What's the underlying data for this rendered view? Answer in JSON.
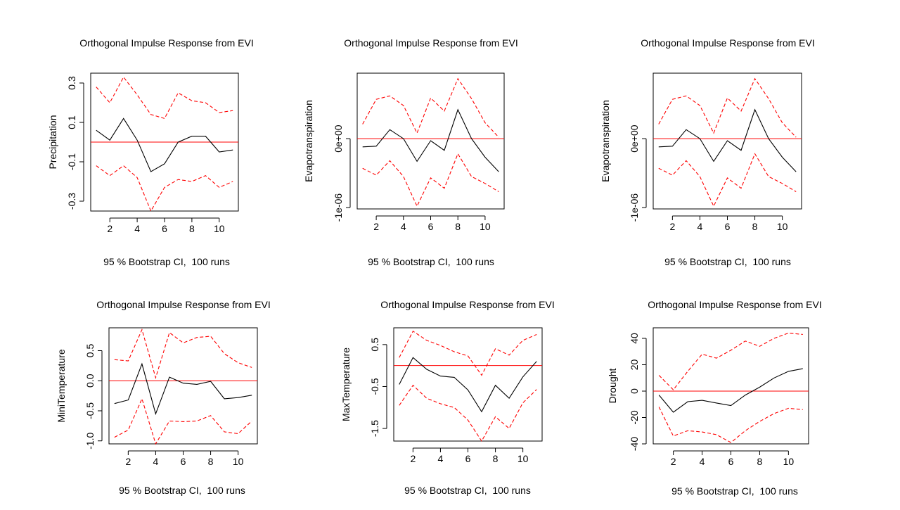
{
  "colors": {
    "response": "#000000",
    "ci": "#ff0000",
    "zero": "#ff0000",
    "frame": "#000000"
  },
  "chart_data": [
    {
      "type": "line",
      "title": "Orthogonal Impulse Response from EVI",
      "subtitle": "95 % Bootstrap CI,  100 runs",
      "ylabel": "Precipitation",
      "x": [
        1,
        2,
        3,
        4,
        5,
        6,
        7,
        8,
        9,
        10,
        11
      ],
      "xticks": [
        2,
        4,
        6,
        8,
        10
      ],
      "xtick_labels": [
        "2",
        "4",
        "6",
        "8",
        "10"
      ],
      "xlim": [
        0.6,
        11.4
      ],
      "yticks": [
        0.3,
        0.1,
        -0.1,
        -0.3
      ],
      "ytick_labels": [
        "0.3",
        "0.1",
        "-0.1",
        "-0.3"
      ],
      "ylim": [
        -0.35,
        0.35
      ],
      "series": [
        {
          "role": "response",
          "values": [
            0.06,
            0.01,
            0.12,
            0.01,
            -0.15,
            -0.11,
            0.0,
            0.03,
            0.03,
            -0.05,
            -0.04
          ]
        },
        {
          "role": "upper",
          "values": [
            0.28,
            0.2,
            0.33,
            0.24,
            0.14,
            0.12,
            0.25,
            0.21,
            0.2,
            0.15,
            0.16
          ]
        },
        {
          "role": "lower",
          "values": [
            -0.12,
            -0.17,
            -0.12,
            -0.18,
            -0.35,
            -0.23,
            -0.19,
            -0.2,
            -0.17,
            -0.23,
            -0.2
          ]
        }
      ]
    },
    {
      "type": "line",
      "title": "Orthogonal Impulse Response from EVI",
      "subtitle": "95 % Bootstrap CI,  100 runs",
      "ylabel": "Evapotranspiration",
      "x": [
        1,
        2,
        3,
        4,
        5,
        6,
        7,
        8,
        9,
        10,
        11
      ],
      "xticks": [
        2,
        4,
        6,
        8,
        10
      ],
      "xtick_labels": [
        "2",
        "4",
        "6",
        "8",
        "10"
      ],
      "xlim": [
        0.6,
        11.4
      ],
      "yticks": [
        0.0,
        -1e-06
      ],
      "ytick_labels": [
        "0e+00",
        "-1e-06"
      ],
      "ylim": [
        -1.02e-06,
        9.5e-07
      ],
      "series": [
        {
          "role": "response",
          "values": [
            -1.2e-07,
            -1.1e-07,
            1.3e-07,
            0.0,
            -3.3e-07,
            -3e-08,
            -1.7e-07,
            4.2e-07,
            0.0,
            -2.7e-07,
            -4.8e-07
          ]
        },
        {
          "role": "upper",
          "values": [
            2.1e-07,
            5.7e-07,
            6.2e-07,
            4.8e-07,
            8e-08,
            5.9e-07,
            4e-07,
            8.7e-07,
            5.8e-07,
            2.3e-07,
            2e-08
          ]
        },
        {
          "role": "lower",
          "values": [
            -4.3e-07,
            -5.3e-07,
            -3.2e-07,
            -5.5e-07,
            -9.8e-07,
            -5.7e-07,
            -7.2e-07,
            -2.2e-07,
            -5.5e-07,
            -6.5e-07,
            -7.7e-07
          ]
        }
      ]
    },
    {
      "type": "line",
      "title": "Orthogonal Impulse Response from EVI",
      "subtitle": "95 % Bootstrap CI,  100 runs",
      "ylabel": "Evapotranspiration",
      "x": [
        1,
        2,
        3,
        4,
        5,
        6,
        7,
        8,
        9,
        10,
        11
      ],
      "xticks": [
        2,
        4,
        6,
        8,
        10
      ],
      "xtick_labels": [
        "2",
        "4",
        "6",
        "8",
        "10"
      ],
      "xlim": [
        0.6,
        11.4
      ],
      "yticks": [
        0.0,
        -1e-06
      ],
      "ytick_labels": [
        "0e+00",
        "-1e-06"
      ],
      "ylim": [
        -1.02e-06,
        9.5e-07
      ],
      "series": [
        {
          "role": "response",
          "values": [
            -1.2e-07,
            -1.1e-07,
            1.3e-07,
            0.0,
            -3.3e-07,
            -3e-08,
            -1.7e-07,
            4.2e-07,
            0.0,
            -2.7e-07,
            -4.8e-07
          ]
        },
        {
          "role": "upper",
          "values": [
            2.1e-07,
            5.7e-07,
            6.2e-07,
            4.8e-07,
            8e-08,
            5.9e-07,
            4e-07,
            8.7e-07,
            5.8e-07,
            2.3e-07,
            2e-08
          ]
        },
        {
          "role": "lower",
          "values": [
            -4.3e-07,
            -5.3e-07,
            -3.2e-07,
            -5.5e-07,
            -9.8e-07,
            -5.7e-07,
            -7.2e-07,
            -2.2e-07,
            -5.5e-07,
            -6.5e-07,
            -7.7e-07
          ]
        }
      ]
    },
    {
      "type": "line",
      "title": "Orthogonal Impulse Response from EVI",
      "subtitle": "95 % Bootstrap CI,  100 runs",
      "ylabel": "MiniTemperature",
      "x": [
        1,
        2,
        3,
        4,
        5,
        6,
        7,
        8,
        9,
        10,
        11
      ],
      "xticks": [
        2,
        4,
        6,
        8,
        10
      ],
      "xtick_labels": [
        "2",
        "4",
        "6",
        "8",
        "10"
      ],
      "xlim": [
        0.6,
        11.4
      ],
      "yticks": [
        0.5,
        0.0,
        -0.5,
        -1.0
      ],
      "ytick_labels": [
        "0.5",
        "0.0",
        "-0.5",
        "-1.0"
      ],
      "ylim": [
        -1.05,
        0.88
      ],
      "series": [
        {
          "role": "response",
          "values": [
            -0.38,
            -0.32,
            0.28,
            -0.55,
            0.06,
            -0.04,
            -0.06,
            -0.01,
            -0.3,
            -0.28,
            -0.24
          ]
        },
        {
          "role": "upper",
          "values": [
            0.35,
            0.33,
            0.85,
            0.05,
            0.8,
            0.63,
            0.72,
            0.74,
            0.45,
            0.3,
            0.22
          ]
        },
        {
          "role": "lower",
          "values": [
            -0.94,
            -0.82,
            -0.3,
            -1.05,
            -0.67,
            -0.68,
            -0.67,
            -0.58,
            -0.85,
            -0.88,
            -0.67
          ]
        }
      ]
    },
    {
      "type": "line",
      "title": "Orthogonal Impulse Response from EVI",
      "subtitle": "95 % Bootstrap CI,  100 runs",
      "ylabel": "MaxTemperature",
      "x": [
        1,
        2,
        3,
        4,
        5,
        6,
        7,
        8,
        9,
        10,
        11
      ],
      "xticks": [
        2,
        4,
        6,
        8,
        10
      ],
      "xtick_labels": [
        "2",
        "4",
        "6",
        "8",
        "10"
      ],
      "xlim": [
        0.6,
        11.4
      ],
      "yticks": [
        0.5,
        -0.5,
        -1.5
      ],
      "ytick_labels": [
        "0.5",
        "-0.5",
        "-1.5"
      ],
      "ylim": [
        -1.8,
        0.9
      ],
      "series": [
        {
          "role": "response",
          "values": [
            -0.45,
            0.19,
            -0.09,
            -0.25,
            -0.28,
            -0.58,
            -1.1,
            -0.47,
            -0.78,
            -0.27,
            0.1
          ]
        },
        {
          "role": "upper",
          "values": [
            0.19,
            0.82,
            0.6,
            0.48,
            0.33,
            0.23,
            -0.23,
            0.4,
            0.25,
            0.6,
            0.74
          ]
        },
        {
          "role": "lower",
          "values": [
            -0.95,
            -0.47,
            -0.78,
            -0.91,
            -1.0,
            -1.3,
            -1.8,
            -1.22,
            -1.5,
            -0.89,
            -0.57
          ]
        }
      ]
    },
    {
      "type": "line",
      "title": "Orthogonal Impulse Response from EVI",
      "subtitle": "95 % Bootstrap CI,  100 runs",
      "ylabel": "Drought",
      "x": [
        1,
        2,
        3,
        4,
        5,
        6,
        7,
        8,
        9,
        10,
        11
      ],
      "xticks": [
        2,
        4,
        6,
        8,
        10
      ],
      "xtick_labels": [
        "2",
        "4",
        "6",
        "8",
        "10"
      ],
      "xlim": [
        0.6,
        11.4
      ],
      "yticks": [
        40,
        20,
        0,
        -20,
        -40
      ],
      "ytick_labels": [
        "40",
        "20",
        "0",
        "-20",
        "-40"
      ],
      "ylim": [
        -40,
        48
      ],
      "series": [
        {
          "role": "response",
          "values": [
            -3,
            -16,
            -8,
            -7,
            -9,
            -11,
            -3,
            3,
            10,
            15,
            17
          ]
        },
        {
          "role": "upper",
          "values": [
            12,
            1,
            15,
            28,
            25,
            31,
            38,
            34,
            40,
            44,
            43
          ]
        },
        {
          "role": "lower",
          "values": [
            -12,
            -34,
            -30,
            -31,
            -33,
            -39,
            -30,
            -23,
            -17,
            -13,
            -14
          ]
        }
      ]
    }
  ]
}
